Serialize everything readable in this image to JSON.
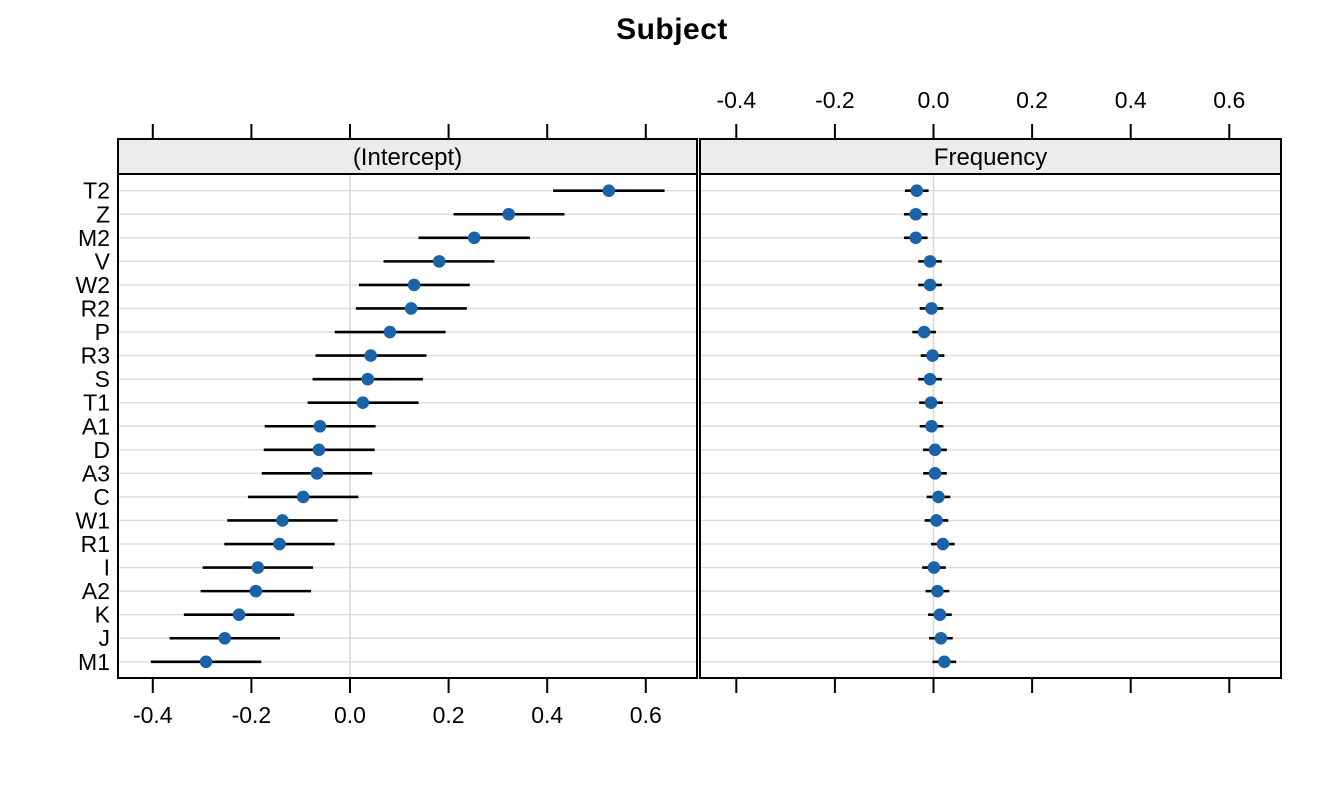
{
  "chart_data": {
    "type": "dotplot",
    "title": "Subject",
    "categories_top_to_bottom": [
      "T2",
      "Z",
      "M2",
      "V",
      "W2",
      "R2",
      "P",
      "R3",
      "S",
      "T1",
      "A1",
      "D",
      "A3",
      "C",
      "W1",
      "R1",
      "I",
      "A2",
      "K",
      "J",
      "M1"
    ],
    "x_ticks": [
      -0.4,
      -0.2,
      0.0,
      0.2,
      0.4,
      0.6
    ],
    "x_tick_labels": [
      "-0.4",
      "-0.2",
      "0.0",
      "0.2",
      "0.4",
      "0.6"
    ],
    "xlim": [
      -0.47,
      0.7
    ],
    "zero_reference_line": true,
    "grid": "horizontal-row-lines",
    "legend": "none",
    "axis_label_sides": {
      "bottom_labels": "(Intercept) panel",
      "top_labels": "Frequency panel"
    },
    "panels": [
      {
        "label": "(Intercept)",
        "estimates": [
          0.525,
          0.322,
          0.252,
          0.181,
          0.13,
          0.124,
          0.081,
          0.042,
          0.036,
          0.026,
          -0.061,
          -0.063,
          -0.067,
          -0.095,
          -0.137,
          -0.143,
          -0.187,
          -0.191,
          -0.225,
          -0.254,
          -0.292
        ],
        "ci_lo": [
          0.412,
          0.21,
          0.139,
          0.068,
          0.018,
          0.012,
          -0.031,
          -0.07,
          -0.076,
          -0.086,
          -0.173,
          -0.175,
          -0.179,
          -0.207,
          -0.249,
          -0.255,
          -0.299,
          -0.303,
          -0.337,
          -0.366,
          -0.404
        ],
        "ci_hi": [
          0.638,
          0.435,
          0.365,
          0.293,
          0.243,
          0.237,
          0.194,
          0.155,
          0.148,
          0.139,
          0.052,
          0.05,
          0.045,
          0.017,
          -0.025,
          -0.031,
          -0.075,
          -0.079,
          -0.113,
          -0.142,
          -0.18
        ]
      },
      {
        "label": "Frequency",
        "estimates": [
          -0.034,
          -0.036,
          -0.036,
          -0.007,
          -0.007,
          -0.004,
          -0.019,
          -0.002,
          -0.007,
          -0.005,
          -0.004,
          0.003,
          0.003,
          0.01,
          0.006,
          0.019,
          0.001,
          0.008,
          0.013,
          0.015,
          0.022
        ],
        "ci_lo": [
          -0.058,
          -0.06,
          -0.06,
          -0.031,
          -0.031,
          -0.028,
          -0.043,
          -0.026,
          -0.031,
          -0.029,
          -0.028,
          -0.021,
          -0.021,
          -0.014,
          -0.018,
          -0.005,
          -0.023,
          -0.016,
          -0.011,
          -0.009,
          -0.002
        ],
        "ci_hi": [
          -0.01,
          -0.012,
          -0.012,
          0.017,
          0.017,
          0.02,
          0.005,
          0.022,
          0.017,
          0.019,
          0.02,
          0.027,
          0.027,
          0.034,
          0.03,
          0.043,
          0.025,
          0.032,
          0.037,
          0.039,
          0.046
        ]
      }
    ],
    "colors": {
      "dot": "#1a63a9",
      "error_bar": "#000000",
      "strip_bg": "#ececec",
      "panel_border": "#000000",
      "row_grid_line": "#dcdcdc",
      "zero_line": "#d9d9d9",
      "background": "#ffffff"
    }
  }
}
